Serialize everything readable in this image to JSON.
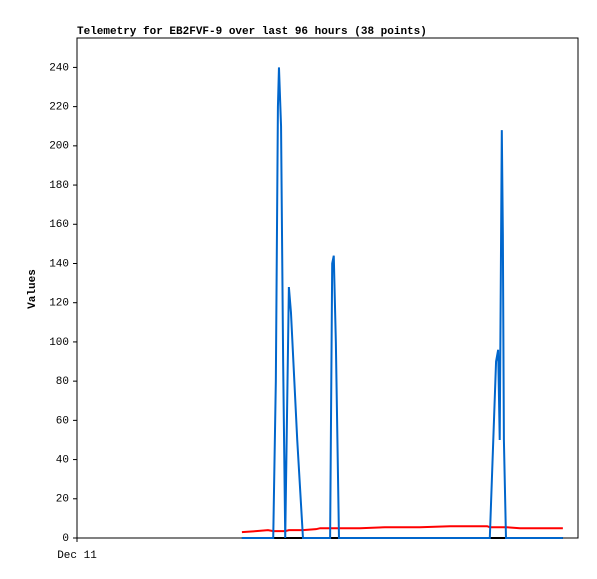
{
  "chart_data": {
    "type": "line",
    "title": "Telemetry for EB2FVF-9 over last 96 hours (38 points)",
    "y_label": "Values",
    "x": [
      31.6,
      34.3,
      36.6,
      37.6,
      38.1,
      38.5,
      38.7,
      39.1,
      39.5,
      39.9,
      40.6,
      41.0,
      42.2,
      43.3,
      45.8,
      46.6,
      48.5,
      48.9,
      49.2,
      49.6,
      50.2,
      54.2,
      59.0,
      65.7,
      71.5,
      78.6,
      79.1,
      79.5,
      80.3,
      80.7,
      81.0,
      81.4,
      81.6,
      81.8,
      82.2,
      84.9,
      88.7,
      93.1
    ],
    "series": [
      {
        "color": "#0066cc",
        "values": [
          0,
          0,
          0,
          0,
          80,
          220,
          240,
          210,
          90,
          0,
          128,
          115,
          50,
          0,
          0,
          0,
          0,
          140,
          144,
          100,
          0,
          0,
          0,
          0,
          0,
          0,
          0,
          30,
          90,
          96,
          50,
          208,
          155,
          50,
          0,
          0,
          0,
          0
        ]
      },
      {
        "color": "#ff0000",
        "values": [
          3,
          3.5,
          4,
          3.5,
          3.5,
          3.5,
          3.5,
          3.5,
          3.5,
          3.5,
          4,
          4,
          4,
          4,
          4.5,
          5,
          5,
          5,
          5,
          5,
          5,
          5,
          5.5,
          5.5,
          6,
          6,
          5.5,
          5.5,
          5.5,
          5.5,
          5.5,
          5.5,
          5.5,
          5.5,
          5.5,
          5,
          5,
          5
        ]
      },
      {
        "color": "#000000",
        "values": [
          0,
          0,
          0,
          0,
          0,
          0,
          0,
          0,
          0,
          0,
          0,
          0,
          0,
          0,
          0,
          0,
          0,
          0,
          0,
          0,
          0,
          0,
          0,
          0,
          0,
          0,
          0,
          0,
          0,
          0,
          0,
          0,
          0,
          0,
          0,
          0,
          0,
          0
        ]
      }
    ],
    "xlim": [
      0,
      96
    ],
    "xticks": [
      {
        "value": 0,
        "label": "Dec 11"
      }
    ],
    "ylim": [
      0,
      255
    ],
    "yticks": [
      0,
      20,
      40,
      60,
      80,
      100,
      120,
      140,
      160,
      180,
      200,
      220,
      240
    ]
  }
}
